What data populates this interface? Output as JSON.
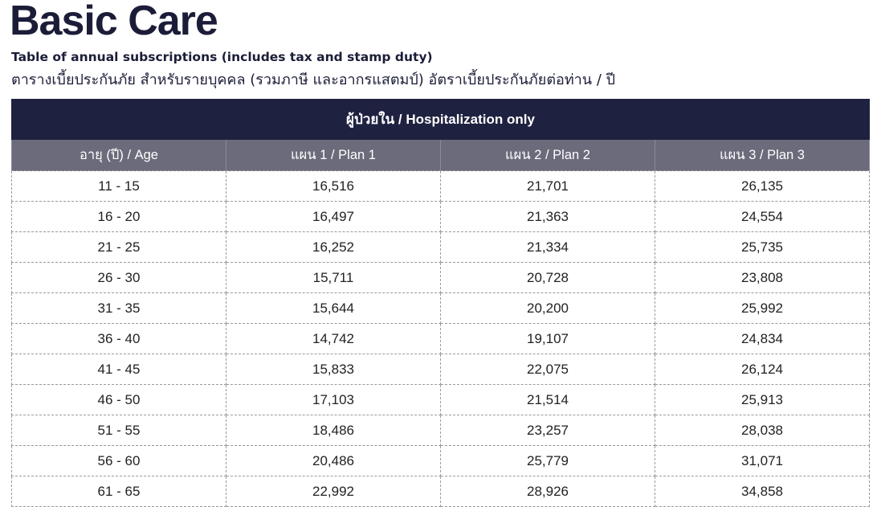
{
  "title": "Basic Care",
  "subtitle_en": "Table of annual subscriptions (includes tax and stamp duty)",
  "subtitle_th": "ตารางเบี้ยประกันภัย สำหรับรายบุคคล (รวมภาษี และอากรแสตมป์) อัตราเบี้ยประกันภัยต่อท่าน / ปี",
  "table": {
    "group_header": "ผู้ป่วยใน / Hospitalization only",
    "columns": [
      "อายุ (ปี) / Age",
      "แผน 1 / Plan 1",
      "แผน 2 / Plan 2",
      "แผน 3 / Plan 3"
    ],
    "rows": [
      [
        "11 - 15",
        "16,516",
        "21,701",
        "26,135"
      ],
      [
        "16 - 20",
        "16,497",
        "21,363",
        "24,554"
      ],
      [
        "21 - 25",
        "16,252",
        "21,334",
        "25,735"
      ],
      [
        "26 - 30",
        "15,711",
        "20,728",
        "23,808"
      ],
      [
        "31 - 35",
        "15,644",
        "20,200",
        "25,992"
      ],
      [
        "36 - 40",
        "14,742",
        "19,107",
        "24,834"
      ],
      [
        "41 - 45",
        "15,833",
        "22,075",
        "26,124"
      ],
      [
        "46 - 50",
        "17,103",
        "21,514",
        "25,913"
      ],
      [
        "51 - 55",
        "18,486",
        "23,257",
        "28,038"
      ],
      [
        "56 - 60",
        "20,486",
        "25,779",
        "31,071"
      ],
      [
        "61 - 65",
        "22,992",
        "28,926",
        "34,858"
      ]
    ]
  },
  "colors": {
    "header_dark": "#1f2140",
    "header_grey": "#6c6b7b",
    "title": "#1b1d38"
  }
}
